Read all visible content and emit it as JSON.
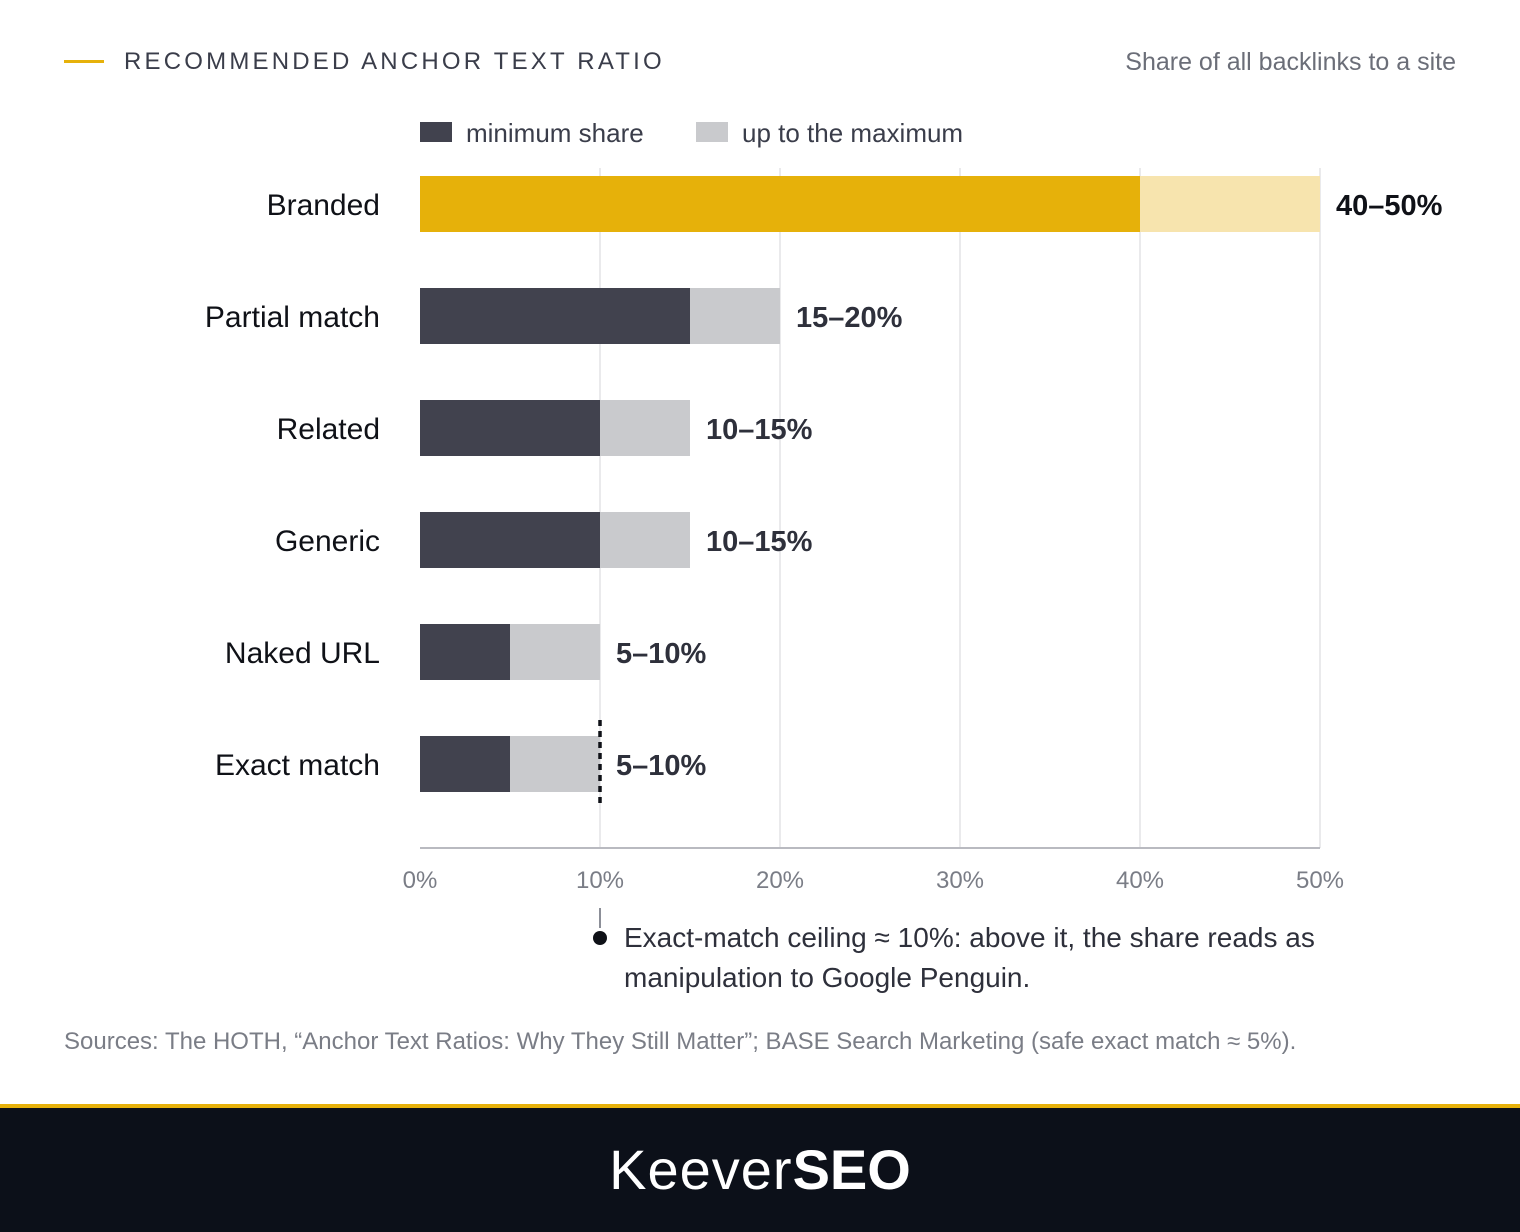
{
  "header": {
    "title": "RECOMMENDED ANCHOR TEXT RATIO",
    "subtitle": "Share of all backlinks to a site"
  },
  "colors": {
    "accent": "#e6b10a",
    "accent_light": "#f7e4ae",
    "min_share": "#41424e",
    "max_share": "#c9cacd",
    "grid": "#e4e4e6",
    "footer_bg": "#0c1019"
  },
  "chart_data": {
    "type": "bar",
    "orientation": "horizontal",
    "stacked": true,
    "categories": [
      "Branded",
      "Partial match",
      "Related",
      "Generic",
      "Naked URL",
      "Exact match"
    ],
    "series": [
      {
        "name": "minimum share",
        "values": [
          40,
          15,
          10,
          10,
          5,
          5
        ]
      },
      {
        "name": "up to the maximum",
        "values": [
          10,
          5,
          5,
          5,
          5,
          5
        ]
      }
    ],
    "value_labels": [
      "40–50%",
      "15–20%",
      "10–15%",
      "10–15%",
      "5–10%",
      "5–10%"
    ],
    "highlighted_category": "Branded",
    "x_ticks": [
      "0%",
      "10%",
      "20%",
      "30%",
      "40%",
      "50%"
    ],
    "xlim": [
      0,
      50
    ],
    "grid": true,
    "legend_position": "top",
    "reference_line": {
      "category": "Exact match",
      "value": 10,
      "style": "dotted"
    }
  },
  "annotation": {
    "text": "Exact-match ceiling ≈ 10%: above it, the share reads as manipulation to Google Penguin."
  },
  "sources": "Sources: The HOTH, “Anchor Text Ratios: Why They Still Matter”; BASE Search Marketing (safe exact match ≈ 5%).",
  "footer": {
    "brand_light": "Keever",
    "brand_bold": "SEO"
  }
}
